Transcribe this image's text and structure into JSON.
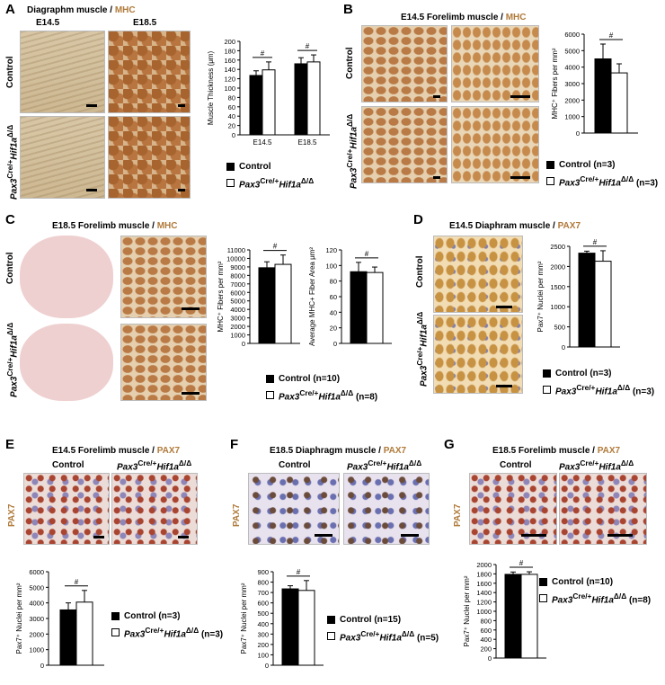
{
  "panels": {
    "A": {
      "letter": "A",
      "title": "Diagraphm muscle / ",
      "stain": "MHC",
      "col_e145": "E14.5",
      "col_e185": "E18.5",
      "row_control": "Control",
      "row_mut_base": "Pax3",
      "row_mut_sup1": "Cre/+",
      "row_mut_gene": "Hif1a",
      "row_mut_sup2": "Δ/Δ",
      "legend_control": "Control",
      "legend_mut_base": "Pax3",
      "legend_mut_sup1": "Cre/+",
      "legend_mut_gene": "Hif1a",
      "legend_mut_sup2": "Δ/Δ",
      "legend_mut_n": ""
    },
    "B": {
      "letter": "B",
      "title": "E14.5 Forelimb muscle / ",
      "stain": "MHC",
      "row_control": "Control",
      "row_mut_base": "Pax3",
      "row_mut_sup1": "Cre/+",
      "row_mut_gene": "Hif1a",
      "row_mut_sup2": "Δ/Δ",
      "legend_control": "Control (n=3)",
      "legend_mut_base": "Pax3",
      "legend_mut_sup1": "Cre/+",
      "legend_mut_gene": "Hif1a",
      "legend_mut_sup2": "Δ/Δ",
      "legend_mut_n": " (n=3)"
    },
    "C": {
      "letter": "C",
      "title": "E18.5  Forelimb muscle / ",
      "stain": "MHC",
      "row_control": "Control",
      "row_mut_base": "Pax3",
      "row_mut_sup1": "Cre/+",
      "row_mut_gene": "Hif1a",
      "row_mut_sup2": "Δ/Δ",
      "legend_control": "Control (n=10)",
      "legend_mut_base": "Pax3",
      "legend_mut_sup1": "Cre/+",
      "legend_mut_gene": "Hif1a",
      "legend_mut_sup2": "Δ/Δ",
      "legend_mut_n": " (n=8)"
    },
    "D": {
      "letter": "D",
      "title": "E14.5 Diaphram muscle / ",
      "stain": "PAX7",
      "row_control": "Control",
      "row_mut_base": "Pax3",
      "row_mut_sup1": "Cre/+",
      "row_mut_gene": "Hif1a",
      "row_mut_sup2": "Δ/Δ",
      "legend_control": "Control (n=3)",
      "legend_mut_base": "Pax3",
      "legend_mut_sup1": "Cre/+",
      "legend_mut_gene": "Hif1a",
      "legend_mut_sup2": "Δ/Δ",
      "legend_mut_n": " (n=3)"
    },
    "E": {
      "letter": "E",
      "title": "E14.5 Forelimb muscle / ",
      "stain": "PAX7",
      "side_label": "PAX7",
      "col_control": "Control",
      "col_mut_base": "Pax3",
      "col_mut_sup1": "Cre/+",
      "col_mut_gene": "Hif1a",
      "col_mut_sup2": "Δ/Δ",
      "legend_control": "Control (n=3)",
      "legend_mut_base": "Pax3",
      "legend_mut_sup1": "Cre/+",
      "legend_mut_gene": "Hif1a",
      "legend_mut_sup2": "Δ/Δ",
      "legend_mut_n": " (n=3)"
    },
    "F": {
      "letter": "F",
      "title": "E18.5 Diaphragm muscle / ",
      "stain": "PAX7",
      "side_label": "PAX7",
      "col_control": "Control",
      "col_mut_base": "Pax3",
      "col_mut_sup1": "Cre/+",
      "col_mut_gene": "Hif1a",
      "col_mut_sup2": "Δ/Δ",
      "legend_control": "Control (n=15)",
      "legend_mut_base": "Pax3",
      "legend_mut_sup1": "Cre/+",
      "legend_mut_gene": "Hif1a",
      "legend_mut_sup2": "Δ/Δ",
      "legend_mut_n": " (n=5)"
    },
    "G": {
      "letter": "G",
      "title": "E18.5 Forelimb muscle / ",
      "stain": "PAX7",
      "side_label": "PAX7",
      "col_control": "Control",
      "col_mut_base": "Pax3",
      "col_mut_sup1": "Cre/+",
      "col_mut_gene": "Hif1a",
      "col_mut_sup2": "Δ/Δ",
      "legend_control": "Control (n=10)",
      "legend_mut_base": "Pax3",
      "legend_mut_sup1": "Cre/+",
      "legend_mut_gene": "Hif1a",
      "legend_mut_sup2": "Δ/Δ",
      "legend_mut_n": " (n=8)"
    }
  },
  "colors": {
    "control": "#000000",
    "mutant": "#ffffff",
    "stain": "#b07a3a"
  },
  "chart_data": [
    {
      "id": "A",
      "type": "bar",
      "categories": [
        "E14.5",
        "E18.5"
      ],
      "series": [
        {
          "name": "Control",
          "values": [
            127,
            152
          ],
          "errors": [
            10,
            13
          ]
        },
        {
          "name": "Pax3Cre/+Hif1aΔ/Δ",
          "values": [
            139,
            156
          ],
          "errors": [
            17,
            15
          ]
        }
      ],
      "ylabel": "Muscle Thickness (μm)",
      "ylim": [
        0,
        200
      ],
      "yticks": [
        "0",
        "20",
        "40",
        "60",
        "80",
        "100",
        "120",
        "140",
        "160",
        "180",
        "200"
      ],
      "annotation": "#"
    },
    {
      "id": "B",
      "type": "bar",
      "categories": [
        ""
      ],
      "series": [
        {
          "name": "Control (n=3)",
          "values": [
            4500
          ],
          "errors": [
            900
          ]
        },
        {
          "name": "Pax3Cre/+Hif1aΔ/Δ (n=3)",
          "values": [
            3650
          ],
          "errors": [
            550
          ]
        }
      ],
      "ylabel": "MHC⁺ Fibers per mm²",
      "ylim": [
        0,
        6000
      ],
      "yticks": [
        "0",
        "1000",
        "2000",
        "3000",
        "4000",
        "5000",
        "6000"
      ],
      "annotation": "#"
    },
    {
      "id": "C1",
      "type": "bar",
      "categories": [
        ""
      ],
      "series": [
        {
          "name": "Control (n=10)",
          "values": [
            8900
          ],
          "errors": [
            700
          ]
        },
        {
          "name": "Pax3Cre/+Hif1aΔ/Δ (n=8)",
          "values": [
            9300
          ],
          "errors": [
            1100
          ]
        }
      ],
      "ylabel": "MHC⁺ Fibers per mm²",
      "ylim": [
        0,
        11000
      ],
      "yticks": [
        "0",
        "1000",
        "2000",
        "3000",
        "4000",
        "5000",
        "6000",
        "7000",
        "8000",
        "9000",
        "10000",
        "11000"
      ],
      "annotation": "#"
    },
    {
      "id": "C2",
      "type": "bar",
      "categories": [
        ""
      ],
      "series": [
        {
          "name": "Control (n=10)",
          "values": [
            92
          ],
          "errors": [
            12
          ]
        },
        {
          "name": "Pax3Cre/+Hif1aΔ/Δ (n=8)",
          "values": [
            91
          ],
          "errors": [
            7
          ]
        }
      ],
      "ylabel": "Average MHC+ Fiber Area μm²",
      "ylim": [
        0,
        120
      ],
      "yticks": [
        "0",
        "20",
        "40",
        "60",
        "80",
        "100",
        "120"
      ],
      "annotation": "#"
    },
    {
      "id": "D",
      "type": "bar",
      "categories": [
        ""
      ],
      "series": [
        {
          "name": "Control (n=3)",
          "values": [
            2330
          ],
          "errors": [
            50
          ]
        },
        {
          "name": "Pax3Cre/+Hif1aΔ/Δ (n=3)",
          "values": [
            2130
          ],
          "errors": [
            260
          ]
        }
      ],
      "ylabel": "Pax7⁺ Nuclei per mm²",
      "ylim": [
        0,
        2500
      ],
      "yticks": [
        "0",
        "500",
        "1000",
        "1500",
        "2000",
        "2500"
      ],
      "annotation": "#"
    },
    {
      "id": "E",
      "type": "bar",
      "categories": [
        ""
      ],
      "series": [
        {
          "name": "Control (n=3)",
          "values": [
            3550
          ],
          "errors": [
            450
          ]
        },
        {
          "name": "Pax3Cre/+Hif1aΔ/Δ (n=3)",
          "values": [
            4050
          ],
          "errors": [
            750
          ]
        }
      ],
      "ylabel": "Pax7⁺ Nuclei per mm²",
      "ylim": [
        0,
        6000
      ],
      "yticks": [
        "0",
        "1000",
        "2000",
        "3000",
        "4000",
        "5000",
        "6000"
      ],
      "annotation": "#"
    },
    {
      "id": "F",
      "type": "bar",
      "categories": [
        ""
      ],
      "series": [
        {
          "name": "Control (n=15)",
          "values": [
            735
          ],
          "errors": [
            30
          ]
        },
        {
          "name": "Pax3Cre/+Hif1aΔ/Δ (n=5)",
          "values": [
            720
          ],
          "errors": [
            95
          ]
        }
      ],
      "ylabel": "Pax7⁺ Nuclei per mm²",
      "ylim": [
        0,
        900
      ],
      "yticks": [
        "0",
        "100",
        "200",
        "300",
        "400",
        "500",
        "600",
        "700",
        "800",
        "900"
      ],
      "annotation": "#"
    },
    {
      "id": "G",
      "type": "bar",
      "categories": [
        ""
      ],
      "series": [
        {
          "name": "Control (n=10)",
          "values": [
            1790
          ],
          "errors": [
            50
          ]
        },
        {
          "name": "Pax3Cre/+Hif1aΔ/Δ (n=8)",
          "values": [
            1790
          ],
          "errors": [
            55
          ]
        }
      ],
      "ylabel": "Pax7⁺ Nuclei per mm²",
      "ylim": [
        0,
        2000
      ],
      "yticks": [
        "0",
        "200",
        "400",
        "600",
        "800",
        "1000",
        "1200",
        "1400",
        "1600",
        "1800",
        "2000"
      ],
      "annotation": "#"
    }
  ]
}
